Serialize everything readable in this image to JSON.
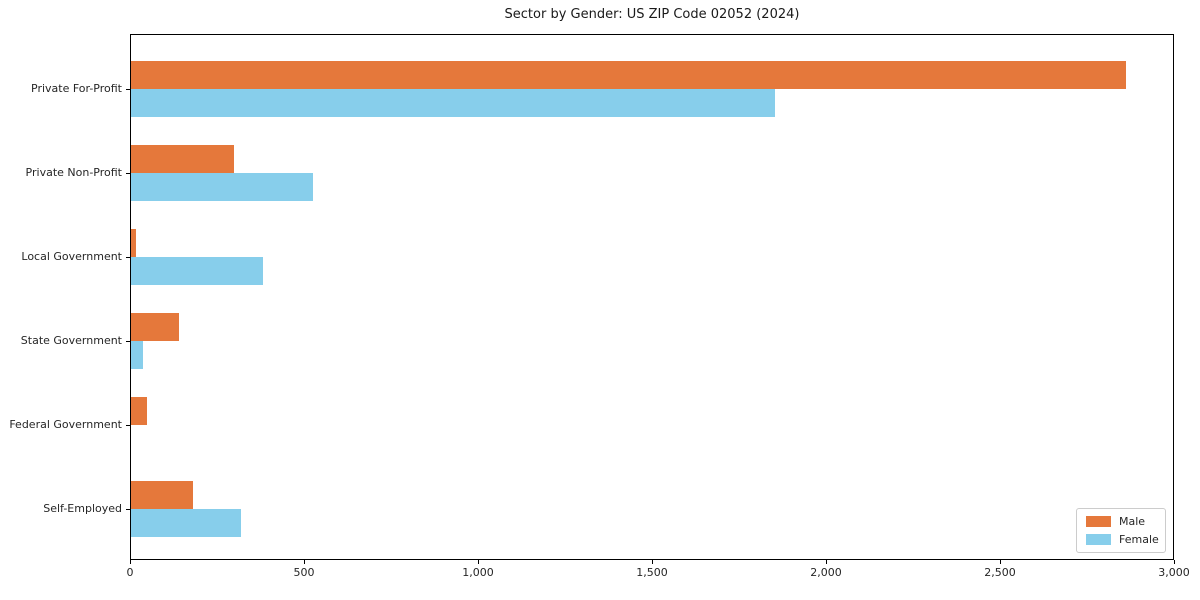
{
  "chart_data": {
    "type": "bar",
    "orientation": "horizontal",
    "title": "Sector by Gender: US ZIP Code 02052 (2024)",
    "categories": [
      "Private For-Profit",
      "Private Non-Profit",
      "Local Government",
      "State Government",
      "Federal Government",
      "Self-Employed"
    ],
    "series": [
      {
        "name": "Male",
        "color": "#e5783b",
        "values": [
          2860,
          296,
          15,
          137,
          47,
          178
        ]
      },
      {
        "name": "Female",
        "color": "#87ceeb",
        "values": [
          1851,
          522,
          378,
          34,
          0,
          316
        ]
      }
    ],
    "xlim": [
      0,
      3000
    ],
    "xticks": [
      0,
      500,
      1000,
      1500,
      2000,
      2500,
      3000
    ],
    "xtick_labels": [
      "0",
      "500",
      "1,000",
      "1,500",
      "2,000",
      "2,500",
      "3,000"
    ],
    "grid": false,
    "legend_position": "lower right",
    "axis_color": "#000000",
    "background_color": "#ffffff"
  }
}
